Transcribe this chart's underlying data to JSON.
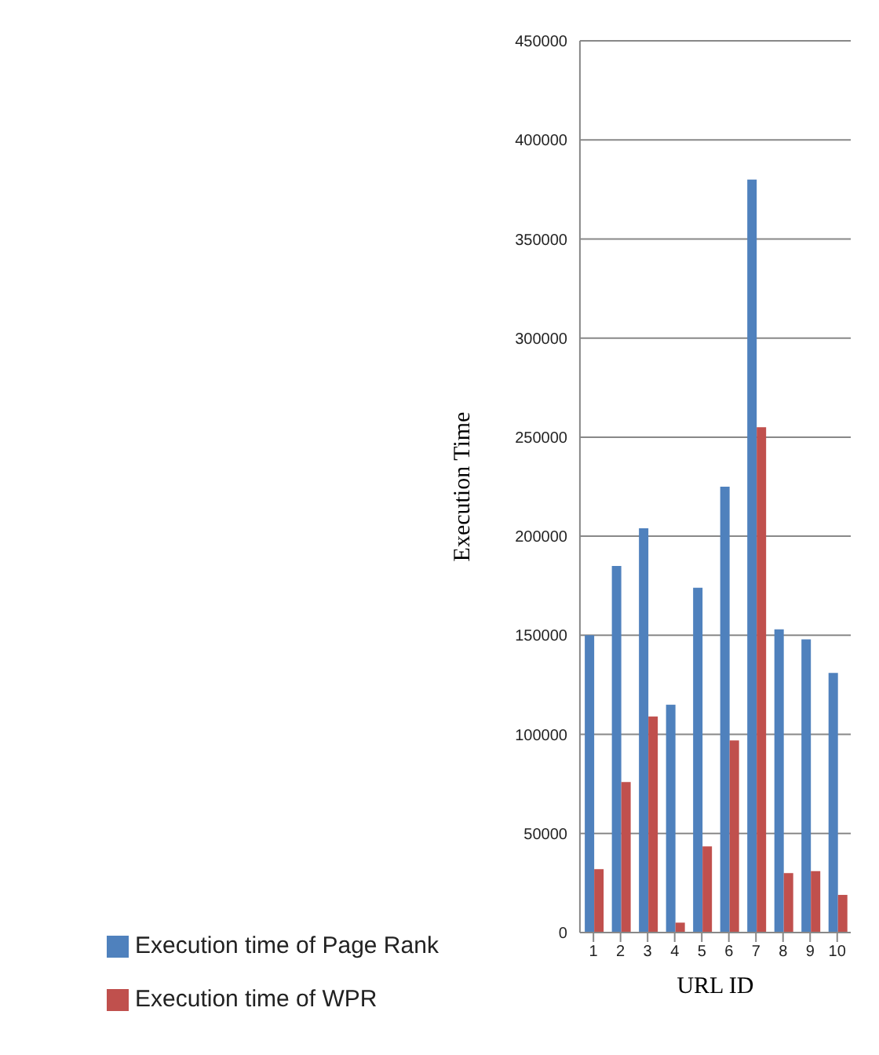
{
  "chart_data": {
    "type": "bar",
    "xlabel": "URL ID",
    "ylabel": "Execution Time",
    "categories": [
      "1",
      "2",
      "3",
      "4",
      "5",
      "6",
      "7",
      "8",
      "9",
      "10"
    ],
    "series": [
      {
        "name": "Execution time of Page Rank",
        "color": "#4f81bd",
        "values": [
          150000,
          185000,
          204000,
          115000,
          174000,
          225000,
          380000,
          153000,
          148000,
          131000
        ]
      },
      {
        "name": "Execution time of WPR",
        "color": "#c0504d",
        "values": [
          32000,
          76000,
          109000,
          5000,
          43500,
          97000,
          255000,
          30000,
          31000,
          19000
        ]
      }
    ],
    "ylim": [
      0,
      450000
    ],
    "yticks": [
      0,
      50000,
      100000,
      150000,
      200000,
      250000,
      300000,
      350000,
      400000,
      450000
    ],
    "grid": "y",
    "legend": "bottom left"
  }
}
